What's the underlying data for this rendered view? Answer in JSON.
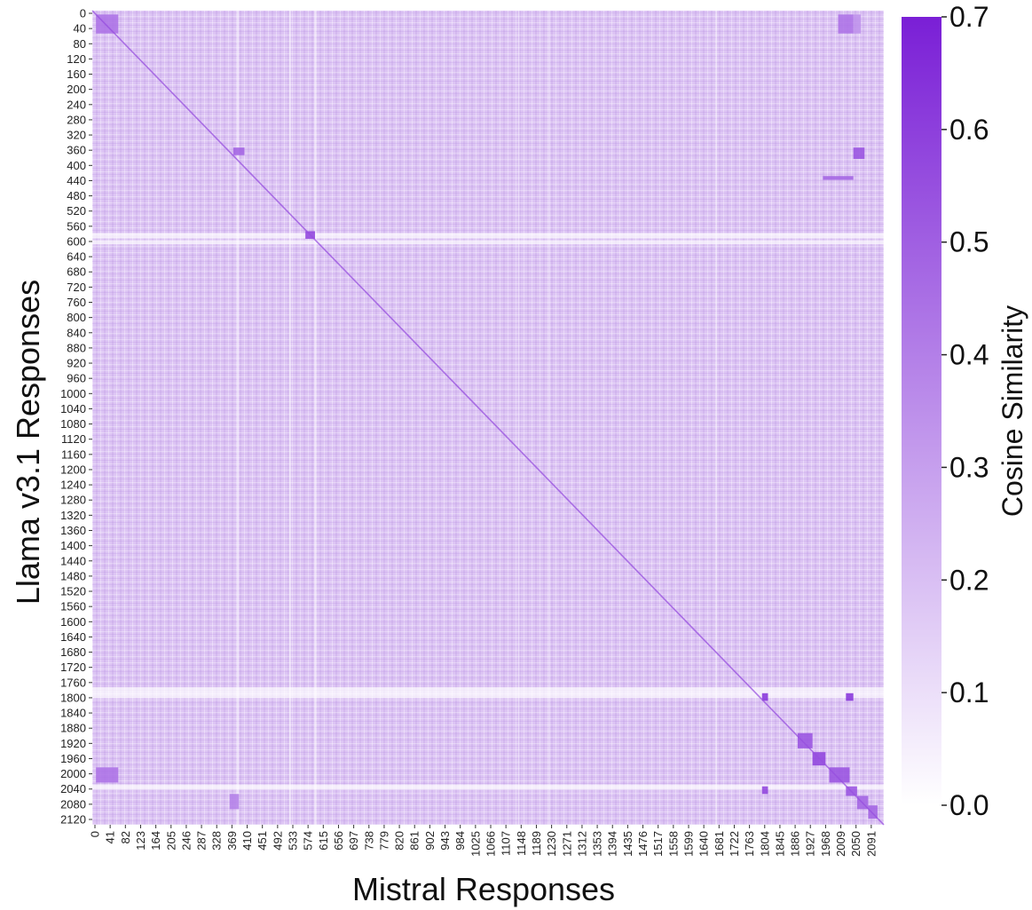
{
  "chart_data": {
    "type": "heatmap",
    "title": "",
    "xlabel": "Mistral Responses",
    "ylabel": "Llama v3.1 Responses",
    "x_tick_labels": [
      "0",
      "41",
      "82",
      "123",
      "164",
      "205",
      "246",
      "287",
      "328",
      "369",
      "410",
      "451",
      "492",
      "533",
      "574",
      "615",
      "656",
      "697",
      "738",
      "779",
      "820",
      "861",
      "902",
      "943",
      "984",
      "1025",
      "1066",
      "1107",
      "1148",
      "1189",
      "1230",
      "1271",
      "1312",
      "1353",
      "1394",
      "1435",
      "1476",
      "1517",
      "1558",
      "1599",
      "1640",
      "1681",
      "1722",
      "1763",
      "1804",
      "1845",
      "1886",
      "1927",
      "1968",
      "2009",
      "2050",
      "2091"
    ],
    "y_tick_labels": [
      "0",
      "40",
      "80",
      "120",
      "160",
      "200",
      "240",
      "280",
      "320",
      "360",
      "400",
      "440",
      "480",
      "520",
      "560",
      "600",
      "640",
      "680",
      "720",
      "760",
      "800",
      "840",
      "880",
      "920",
      "960",
      "1000",
      "1040",
      "1080",
      "1120",
      "1160",
      "1200",
      "1240",
      "1280",
      "1320",
      "1360",
      "1400",
      "1440",
      "1480",
      "1520",
      "1560",
      "1600",
      "1640",
      "1680",
      "1720",
      "1760",
      "1800",
      "1840",
      "1880",
      "1920",
      "1960",
      "2000",
      "2040",
      "2080",
      "2120"
    ],
    "x_range": [
      0,
      2132
    ],
    "y_range": [
      0,
      2141
    ],
    "grid": false,
    "colorbar": {
      "title": "Cosine Similarity",
      "ticks": [
        "0.0",
        "0.1",
        "0.2",
        "0.3",
        "0.4",
        "0.5",
        "0.6",
        "0.7"
      ],
      "range": [
        0.0,
        0.7
      ],
      "color_low": "#ffffff",
      "color_high": "#7a1fd6"
    },
    "background_similarity": 0.18,
    "diagonal_similarity": 0.55,
    "highlight_blocks": [
      {
        "x": [
          10,
          70
        ],
        "y": [
          10,
          60
        ],
        "value": 0.45
      },
      {
        "x": [
          2009,
          2050
        ],
        "y": [
          10,
          60
        ],
        "value": 0.45
      },
      {
        "x": [
          2050,
          2070
        ],
        "y": [
          10,
          60
        ],
        "value": 0.35
      },
      {
        "x": [
          380,
          410
        ],
        "y": [
          360,
          380
        ],
        "value": 0.5
      },
      {
        "x": [
          2050,
          2080
        ],
        "y": [
          360,
          390
        ],
        "value": 0.55
      },
      {
        "x": [
          1968,
          2050
        ],
        "y": [
          435,
          445
        ],
        "value": 0.5
      },
      {
        "x": [
          574,
          600
        ],
        "y": [
          580,
          600
        ],
        "value": 0.6
      },
      {
        "x": [
          1804,
          1820
        ],
        "y": [
          1795,
          1815
        ],
        "value": 0.65
      },
      {
        "x": [
          2030,
          2050
        ],
        "y": [
          1795,
          1815
        ],
        "value": 0.65
      },
      {
        "x": [
          1900,
          1940
        ],
        "y": [
          1900,
          1940
        ],
        "value": 0.55
      },
      {
        "x": [
          1940,
          1975
        ],
        "y": [
          1950,
          1985
        ],
        "value": 0.6
      },
      {
        "x": [
          1985,
          2040
        ],
        "y": [
          1990,
          2030
        ],
        "value": 0.55
      },
      {
        "x": [
          10,
          70
        ],
        "y": [
          1990,
          2030
        ],
        "value": 0.45
      },
      {
        "x": [
          2030,
          2060
        ],
        "y": [
          2040,
          2065
        ],
        "value": 0.55
      },
      {
        "x": [
          2060,
          2090
        ],
        "y": [
          2065,
          2100
        ],
        "value": 0.5
      },
      {
        "x": [
          2090,
          2115
        ],
        "y": [
          2090,
          2125
        ],
        "value": 0.5
      },
      {
        "x": [
          370,
          395
        ],
        "y": [
          2060,
          2100
        ],
        "value": 0.4
      },
      {
        "x": [
          1804,
          1820
        ],
        "y": [
          2040,
          2060
        ],
        "value": 0.6
      }
    ]
  }
}
